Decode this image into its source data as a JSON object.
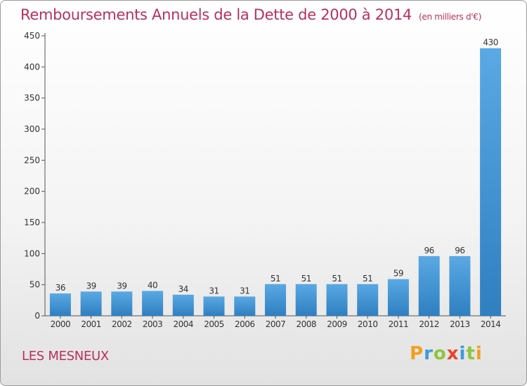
{
  "chart_data": {
    "type": "bar",
    "title": "Remboursements Annuels de la Dette de 2000 à 2014",
    "subtitle": "(en milliers d'€)",
    "categories": [
      "2000",
      "2001",
      "2002",
      "2003",
      "2004",
      "2005",
      "2006",
      "2007",
      "2008",
      "2009",
      "2010",
      "2011",
      "2012",
      "2013",
      "2014"
    ],
    "values": [
      36,
      39,
      39,
      40,
      34,
      31,
      31,
      51,
      51,
      51,
      51,
      59,
      96,
      96,
      430
    ],
    "ylim": [
      0,
      450
    ],
    "yticks": [
      0,
      50,
      100,
      150,
      200,
      250,
      300,
      350,
      400,
      450
    ],
    "grid": false,
    "xlabel": "",
    "ylabel": "",
    "bar_color_top": "#5aa9e4",
    "bar_color_bottom": "#2f7fc1"
  },
  "footer": {
    "commune": "LES MESNEUX",
    "logo_letters": [
      "P",
      "r",
      "o",
      "x",
      "i",
      "t",
      "i"
    ],
    "logo_colors": [
      "#f0a020",
      "#3d9bd8",
      "#8cc63f",
      "#e8462b",
      "#3d9bd8",
      "#8cc63f",
      "#f0a020"
    ]
  }
}
